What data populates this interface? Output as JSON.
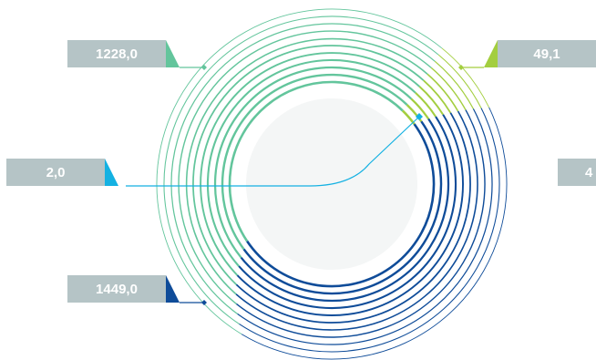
{
  "chart_data": {
    "type": "radial-bar",
    "title": "",
    "series": [
      {
        "label": "1228,0",
        "value": 1228.0,
        "color": "#63c59c"
      },
      {
        "label": "49,1",
        "value": 49.1,
        "color": "#a3ce3f"
      },
      {
        "label": "2,0",
        "value": 2.0,
        "color": "#14b1e2"
      },
      {
        "label": "1449,0",
        "value": 1449.0,
        "color": "#0f4c99"
      },
      {
        "label": "4",
        "value": null,
        "color": "#b5c4c6"
      }
    ]
  }
}
